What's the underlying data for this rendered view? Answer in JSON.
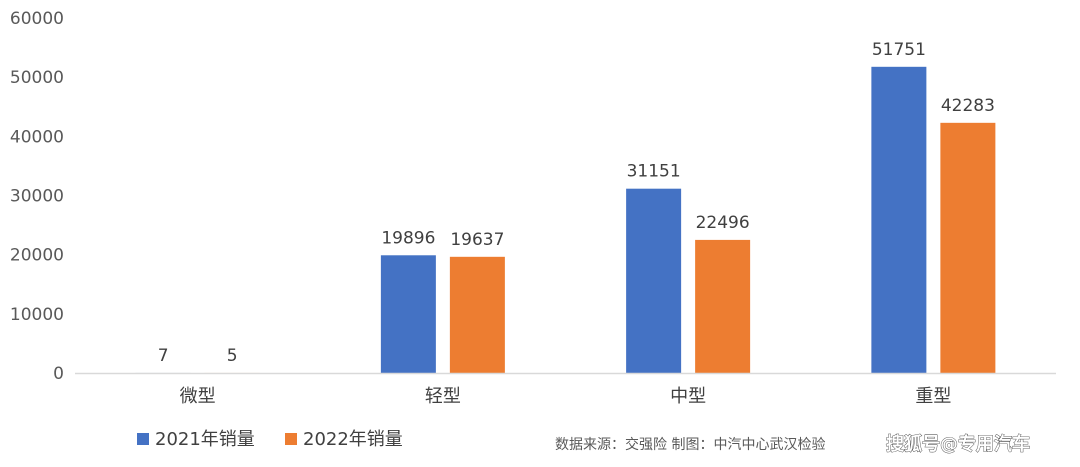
{
  "chart_data": {
    "type": "bar",
    "categories": [
      "微型",
      "轻型",
      "中型",
      "重型"
    ],
    "series": [
      {
        "name": "2021年销量",
        "values": [
          7,
          19896,
          31151,
          51751
        ],
        "color": "#4472C4"
      },
      {
        "name": "2022年销量",
        "values": [
          5,
          19637,
          22496,
          42283
        ],
        "color": "#ED7D31"
      }
    ],
    "ylim": [
      0,
      60000
    ],
    "yticks": [
      0,
      10000,
      20000,
      30000,
      40000,
      50000,
      60000
    ],
    "grid": false,
    "legend_position": "bottom-left",
    "title": "",
    "xlabel": "",
    "ylabel": ""
  },
  "source_note": "数据来源：交强险  制图：中汽中心武汉检验",
  "watermark": "搜狐号@专用汽车"
}
